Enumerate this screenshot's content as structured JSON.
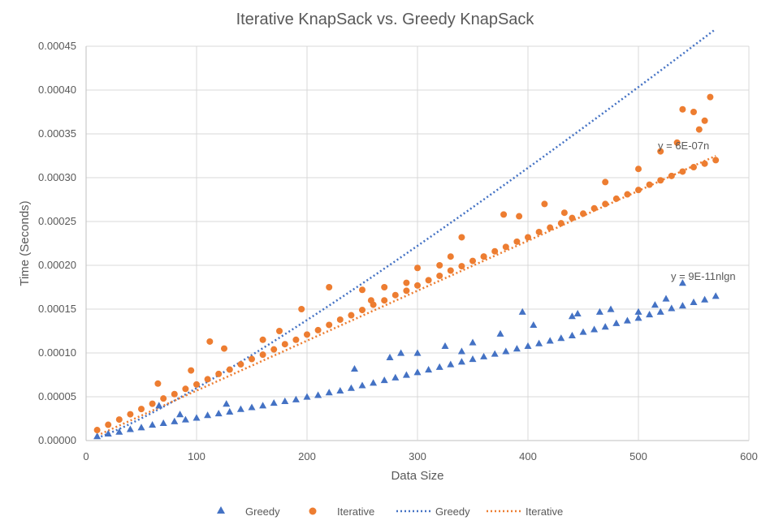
{
  "chart_data": {
    "type": "scatter",
    "title": "Iterative KnapSack vs. Greedy KnapSack",
    "xlabel": "Data Size",
    "ylabel": "Time (Seconds)",
    "xlim": [
      0,
      600
    ],
    "ylim": [
      0,
      0.00045
    ],
    "x_ticks": [
      "0",
      "100",
      "200",
      "300",
      "400",
      "500",
      "600"
    ],
    "y_ticks": [
      "0.00000",
      "0.00005",
      "0.00010",
      "0.00015",
      "0.00020",
      "0.00025",
      "0.00030",
      "0.00035",
      "0.00040",
      "0.00045"
    ],
    "grid": true,
    "legend_position": "bottom",
    "series": [
      {
        "name": "Greedy",
        "marker": "triangle",
        "color": "#4472C4",
        "x": [
          10,
          20,
          30,
          40,
          50,
          60,
          70,
          80,
          90,
          100,
          110,
          120,
          130,
          140,
          150,
          160,
          170,
          180,
          190,
          200,
          210,
          220,
          230,
          240,
          250,
          260,
          270,
          280,
          290,
          300,
          310,
          320,
          330,
          340,
          350,
          360,
          370,
          380,
          390,
          400,
          410,
          420,
          430,
          440,
          450,
          460,
          470,
          480,
          490,
          500,
          510,
          520,
          530,
          540,
          550,
          560,
          570,
          66,
          85,
          127,
          243,
          275,
          285,
          300,
          325,
          340,
          350,
          375,
          395,
          405,
          440,
          445,
          465,
          475,
          500,
          515,
          525,
          540
        ],
        "y": [
          5e-06,
          8e-06,
          1e-05,
          1.3e-05,
          1.5e-05,
          1.8e-05,
          2e-05,
          2.2e-05,
          2.4e-05,
          2.6e-05,
          2.9e-05,
          3.1e-05,
          3.3e-05,
          3.6e-05,
          3.8e-05,
          4e-05,
          4.3e-05,
          4.5e-05,
          4.7e-05,
          5e-05,
          5.2e-05,
          5.5e-05,
          5.7e-05,
          6e-05,
          6.3e-05,
          6.6e-05,
          6.9e-05,
          7.2e-05,
          7.5e-05,
          7.8e-05,
          8.1e-05,
          8.4e-05,
          8.7e-05,
          9e-05,
          9.3e-05,
          9.6e-05,
          9.9e-05,
          0.000102,
          0.000105,
          0.000108,
          0.000111,
          0.000114,
          0.000117,
          0.00012,
          0.000124,
          0.000127,
          0.00013,
          0.000134,
          0.000137,
          0.00014,
          0.000144,
          0.000147,
          0.000151,
          0.000154,
          0.000158,
          0.000161,
          0.000165,
          4e-05,
          3e-05,
          4.2e-05,
          8.2e-05,
          9.5e-05,
          0.0001,
          0.0001,
          0.000108,
          0.000102,
          0.000112,
          0.000122,
          0.000147,
          0.000132,
          0.000142,
          0.000145,
          0.000147,
          0.00015,
          0.000147,
          0.000155,
          0.000162,
          0.00018
        ]
      },
      {
        "name": "Iterative",
        "marker": "circle",
        "color": "#ED7D31",
        "x": [
          10,
          20,
          30,
          40,
          50,
          60,
          70,
          80,
          90,
          100,
          110,
          120,
          130,
          140,
          150,
          160,
          170,
          180,
          190,
          200,
          210,
          220,
          230,
          240,
          250,
          260,
          270,
          280,
          290,
          300,
          310,
          320,
          330,
          340,
          350,
          360,
          370,
          380,
          390,
          400,
          410,
          420,
          430,
          440,
          450,
          460,
          470,
          480,
          490,
          500,
          510,
          520,
          530,
          540,
          550,
          560,
          570,
          65,
          95,
          112,
          125,
          160,
          175,
          195,
          220,
          250,
          258,
          270,
          290,
          300,
          320,
          330,
          340,
          360,
          378,
          392,
          415,
          433,
          470,
          500,
          520,
          535,
          540,
          550,
          555,
          560,
          565
        ],
        "y": [
          1.2e-05,
          1.8e-05,
          2.4e-05,
          3e-05,
          3.6e-05,
          4.2e-05,
          4.8e-05,
          5.3e-05,
          5.9e-05,
          6.4e-05,
          7e-05,
          7.6e-05,
          8.1e-05,
          8.7e-05,
          9.3e-05,
          9.8e-05,
          0.000104,
          0.00011,
          0.000115,
          0.000121,
          0.000126,
          0.000132,
          0.000138,
          0.000143,
          0.000149,
          0.000155,
          0.00016,
          0.000166,
          0.000171,
          0.000177,
          0.000183,
          0.000188,
          0.000194,
          0.000199,
          0.000205,
          0.00021,
          0.000216,
          0.000221,
          0.000227,
          0.000232,
          0.000238,
          0.000243,
          0.000248,
          0.000254,
          0.000259,
          0.000265,
          0.00027,
          0.000276,
          0.000281,
          0.000286,
          0.000292,
          0.000297,
          0.000302,
          0.000307,
          0.000312,
          0.000316,
          0.00032,
          6.5e-05,
          8e-05,
          0.000113,
          0.000105,
          0.000115,
          0.000125,
          0.00015,
          0.000175,
          0.000172,
          0.00016,
          0.000175,
          0.00018,
          0.000197,
          0.0002,
          0.00021,
          0.000232,
          0.00021,
          0.000258,
          0.000256,
          0.00027,
          0.00026,
          0.000295,
          0.00031,
          0.00033,
          0.00034,
          0.000378,
          0.000375,
          0.000355,
          0.000365,
          0.000392
        ]
      }
    ],
    "trendlines": [
      {
        "name": "Greedy",
        "style": "dotted",
        "color": "#4472C4",
        "formula": "y = 9E-11nlgn",
        "coef": 9e-11,
        "type": "nlgn",
        "x_range": [
          10,
          570
        ]
      },
      {
        "name": "Iterative",
        "style": "dotted",
        "color": "#ED7D31",
        "formula": "y = 6E-07n",
        "coef": 5.7e-07,
        "type": "linear",
        "x_range": [
          10,
          570
        ]
      }
    ],
    "legend": [
      {
        "label": "Greedy",
        "kind": "triangle",
        "color": "#4472C4"
      },
      {
        "label": "Iterative",
        "kind": "circle",
        "color": "#ED7D31"
      },
      {
        "label": "Greedy",
        "kind": "dotted-line",
        "color": "#4472C4"
      },
      {
        "label": "Iterative",
        "kind": "dotted-line",
        "color": "#ED7D31"
      }
    ]
  }
}
